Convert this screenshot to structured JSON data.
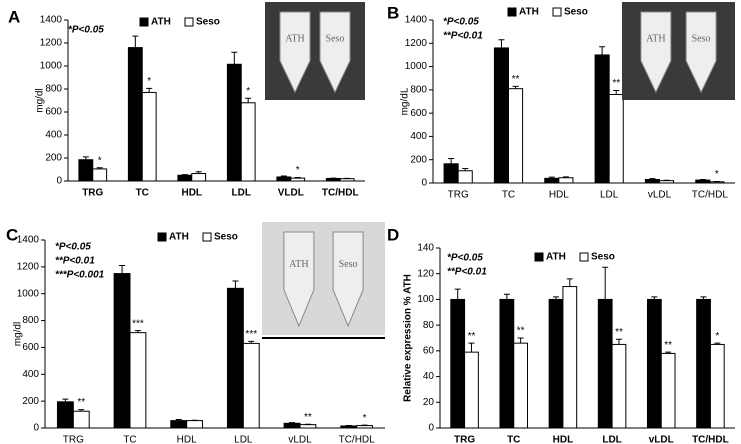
{
  "chart_data": [
    {
      "type": "bar",
      "panel_label": "A",
      "y_label": "mg/dl",
      "annotations_text": [
        "*P<0.05"
      ],
      "photo_labels": [
        "ATH",
        "Seso"
      ],
      "categories": [
        "TRG",
        "TC",
        "HDL",
        "LDL",
        "VLDL",
        "TC/HDL"
      ],
      "ylim": [
        0,
        1400
      ],
      "yticks": [
        0,
        200,
        400,
        600,
        800,
        1000,
        1200,
        1400
      ],
      "series": [
        {
          "name": "ATH",
          "color": "#000000",
          "values": [
            185,
            1160,
            50,
            1015,
            35,
            22
          ],
          "errors": [
            25,
            100,
            5,
            105,
            8,
            3
          ]
        },
        {
          "name": "Seso",
          "color": "#ffffff",
          "values": [
            105,
            770,
            65,
            680,
            25,
            20
          ],
          "errors": [
            10,
            35,
            15,
            40,
            5,
            3
          ],
          "significance": [
            "*",
            "*",
            null,
            "*",
            "*",
            null
          ]
        }
      ]
    },
    {
      "type": "bar",
      "panel_label": "B",
      "y_label": "mg/dL",
      "annotations_text": [
        "*P<0.05",
        "**P<0.01"
      ],
      "photo_labels": [
        "ATH",
        "Seso"
      ],
      "categories": [
        "TRG",
        "TC",
        "HDL",
        "LDL",
        "vLDL",
        "TC/HDL"
      ],
      "ylim": [
        0,
        1400
      ],
      "yticks": [
        0,
        200,
        400,
        600,
        800,
        1000,
        1200,
        1400
      ],
      "series": [
        {
          "name": "ATH",
          "color": "#000000",
          "values": [
            165,
            1160,
            40,
            1100,
            30,
            25
          ],
          "errors": [
            45,
            70,
            10,
            70,
            8,
            5
          ]
        },
        {
          "name": "Seso",
          "color": "#ffffff",
          "values": [
            105,
            810,
            45,
            760,
            20,
            10
          ],
          "errors": [
            20,
            20,
            8,
            35,
            4,
            3
          ],
          "significance": [
            null,
            "**",
            null,
            "**",
            null,
            "*"
          ]
        }
      ]
    },
    {
      "type": "bar",
      "panel_label": "C",
      "y_label": "mg/dl",
      "annotations_text": [
        "*P<0.05",
        "**P<0.01",
        "***P<0.001"
      ],
      "photo_labels": [
        "ATH",
        "Seso"
      ],
      "categories": [
        "TRG",
        "TC",
        "HDL",
        "LDL",
        "vLDL",
        "TC/HDL"
      ],
      "ylim": [
        0,
        1400
      ],
      "yticks": [
        0,
        200,
        400,
        600,
        800,
        1000,
        1200,
        1400
      ],
      "series": [
        {
          "name": "ATH",
          "color": "#000000",
          "values": [
            195,
            1150,
            55,
            1040,
            35,
            15
          ],
          "errors": [
            20,
            60,
            8,
            55,
            5,
            4
          ]
        },
        {
          "name": "Seso",
          "color": "#ffffff",
          "values": [
            125,
            710,
            55,
            630,
            25,
            18
          ],
          "errors": [
            12,
            15,
            3,
            15,
            3,
            3
          ],
          "significance": [
            "**",
            "***",
            null,
            "***",
            "**",
            "*"
          ]
        }
      ]
    },
    {
      "type": "bar",
      "panel_label": "D",
      "y_label": "Relative expression % ATH",
      "annotations_text": [
        "*P<0.05",
        "**P<0.01"
      ],
      "categories": [
        "TRG",
        "TC",
        "HDL",
        "LDL",
        "vLDL",
        "TC/HDL"
      ],
      "ylim": [
        0,
        140
      ],
      "yticks": [
        0,
        20,
        40,
        60,
        80,
        100,
        120,
        140
      ],
      "series": [
        {
          "name": "ATH",
          "color": "#000000",
          "values": [
            100,
            100,
            100,
            100,
            100,
            100
          ],
          "errors": [
            8,
            4,
            2,
            25,
            2,
            2
          ]
        },
        {
          "name": "Seso",
          "color": "#ffffff",
          "values": [
            59,
            66,
            110,
            65,
            58,
            65
          ],
          "errors": [
            7,
            4,
            6,
            4,
            1,
            1
          ],
          "significance": [
            "**",
            "**",
            null,
            "**",
            "**",
            "*"
          ]
        }
      ]
    }
  ]
}
